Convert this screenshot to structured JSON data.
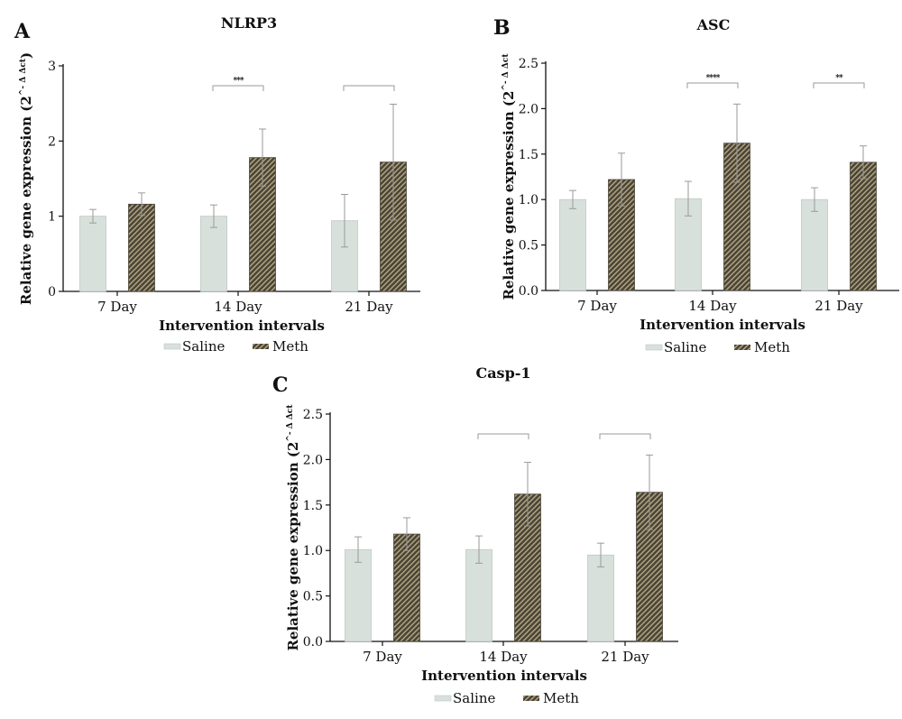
{
  "legend": {
    "saline": "Saline",
    "meth": "Meth"
  },
  "colors": {
    "saline_fill": "#d8e0dc",
    "saline_stroke": "#bfc8c3",
    "meth_base": "#4a4538",
    "meth_stripe": "#b8a982",
    "error_bar": "#9a9a9a",
    "axis": "#111111"
  },
  "chart_data": [
    {
      "panel": "A",
      "type": "bar",
      "title": "NLRP3",
      "xlabel": "Intervention intervals",
      "ylabel_main": "Relative gene expression (2",
      "ylabel_sup": "^- Δ Δct",
      "ylabel_close": ")",
      "ylim": [
        0,
        3
      ],
      "yticks": [
        "0",
        "1",
        "2",
        "3"
      ],
      "categories": [
        "7 Day",
        "14 Day",
        "21 Day"
      ],
      "series": [
        {
          "name": "Saline",
          "values": [
            1.0,
            1.0,
            0.94
          ],
          "errors": [
            0.09,
            0.15,
            0.35
          ]
        },
        {
          "name": "Meth",
          "values": [
            1.16,
            1.78,
            1.72
          ],
          "errors": [
            0.15,
            0.38,
            0.77
          ]
        }
      ],
      "significance": [
        {
          "category": "14 Day",
          "label": "***"
        },
        {
          "category": "21 Day",
          "label": ""
        }
      ]
    },
    {
      "panel": "B",
      "type": "bar",
      "title": "ASC",
      "xlabel": "Intervention intervals",
      "ylabel_main": "Relative gene expression (2",
      "ylabel_sup": "^- Δ Δct",
      "ylabel_close": "",
      "ylim": [
        0,
        2.5
      ],
      "yticks": [
        "0.0",
        "0.5",
        "1.0",
        "1.5",
        "2.0",
        "2.5"
      ],
      "categories": [
        "7 Day",
        "14 Day",
        "21 Day"
      ],
      "series": [
        {
          "name": "Saline",
          "values": [
            1.0,
            1.01,
            1.0
          ],
          "errors": [
            0.1,
            0.19,
            0.13
          ]
        },
        {
          "name": "Meth",
          "values": [
            1.22,
            1.62,
            1.41
          ],
          "errors": [
            0.29,
            0.43,
            0.18
          ]
        }
      ],
      "significance": [
        {
          "category": "14 Day",
          "label": "****"
        },
        {
          "category": "21 Day",
          "label": "**"
        }
      ]
    },
    {
      "panel": "C",
      "type": "bar",
      "title": "Casp-1",
      "xlabel": "Intervention intervals",
      "ylabel_main": "Relative gene expression (2",
      "ylabel_sup": "^- Δ Δct",
      "ylabel_close": "",
      "ylim": [
        0,
        2.5
      ],
      "yticks": [
        "0.0",
        "0.5",
        "1.0",
        "1.5",
        "2.0",
        "2.5"
      ],
      "categories": [
        "7 Day",
        "14 Day",
        "21 Day"
      ],
      "series": [
        {
          "name": "Saline",
          "values": [
            1.01,
            1.01,
            0.95
          ],
          "errors": [
            0.14,
            0.15,
            0.13
          ]
        },
        {
          "name": "Meth",
          "values": [
            1.18,
            1.62,
            1.64
          ],
          "errors": [
            0.18,
            0.35,
            0.41
          ]
        }
      ],
      "significance": [
        {
          "category": "14 Day",
          "label": ""
        },
        {
          "category": "21 Day",
          "label": ""
        }
      ]
    }
  ]
}
